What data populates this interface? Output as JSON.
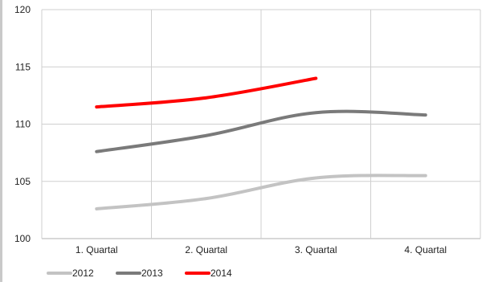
{
  "chart_data": {
    "type": "line",
    "title": "",
    "xlabel": "",
    "ylabel": "",
    "categories": [
      "1. Quartal",
      "2. Quartal",
      "3. Quartal",
      "4. Quartal"
    ],
    "ylim": [
      100,
      120
    ],
    "yticks": [
      "100",
      "105",
      "110",
      "115",
      "120"
    ],
    "grid": true,
    "legend": "bottom-left",
    "series": [
      {
        "name": "2012",
        "color": "#c3c3c3",
        "values": [
          102.6,
          103.5,
          105.3,
          105.5
        ]
      },
      {
        "name": "2013",
        "color": "#7a7a7a",
        "values": [
          107.6,
          109.0,
          111.0,
          110.8
        ]
      },
      {
        "name": "2014",
        "color": "#ff0000",
        "values": [
          111.5,
          112.3,
          114.0,
          null
        ]
      }
    ]
  }
}
